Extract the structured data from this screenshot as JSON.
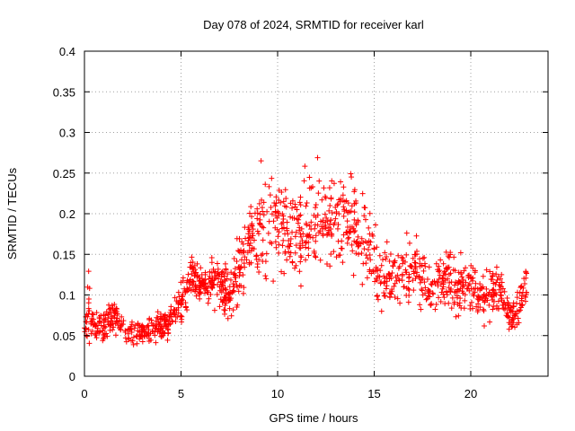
{
  "chart_data": {
    "type": "scatter",
    "title": "Day 078 of 2024, SRMTID for receiver karl",
    "xlabel": "GPS time / hours",
    "ylabel": "SRMTID / TECUs",
    "xlim": [
      0,
      24
    ],
    "ylim": [
      0,
      0.4
    ],
    "xticks": [
      0,
      5,
      10,
      15,
      20
    ],
    "yticks": [
      0,
      0.05,
      0.1,
      0.15,
      0.2,
      0.25,
      0.3,
      0.35,
      0.4
    ],
    "xtick_labels": [
      "0",
      "5",
      "10",
      "15",
      "20"
    ],
    "ytick_labels": [
      "0",
      "0.05",
      "0.1",
      "0.15",
      "0.2",
      "0.25",
      "0.3",
      "0.35",
      "0.4"
    ],
    "grid": true,
    "marker": "+",
    "color": "#ff0000",
    "series_note": "Estimated envelope of the scatter cloud (mean and spread of SRMTID vs hour); points are sampled from it.",
    "envelope": {
      "hours": [
        0,
        0.25,
        0.5,
        1,
        1.5,
        2,
        2.5,
        3,
        3.5,
        4,
        4.5,
        5,
        5.5,
        6,
        6.5,
        7,
        7.5,
        8,
        8.5,
        9,
        9.5,
        10,
        10.5,
        11,
        11.5,
        12,
        12.5,
        13,
        13.5,
        14,
        14.5,
        15,
        15.5,
        16,
        16.5,
        17,
        17.5,
        18,
        18.5,
        19,
        19.5,
        20,
        20.5,
        21,
        21.5,
        22,
        22.5,
        22.9
      ],
      "mean": [
        0.06,
        0.09,
        0.055,
        0.06,
        0.075,
        0.06,
        0.055,
        0.055,
        0.055,
        0.06,
        0.07,
        0.09,
        0.125,
        0.115,
        0.11,
        0.12,
        0.1,
        0.13,
        0.17,
        0.18,
        0.2,
        0.19,
        0.17,
        0.17,
        0.18,
        0.2,
        0.19,
        0.19,
        0.2,
        0.18,
        0.17,
        0.14,
        0.12,
        0.12,
        0.13,
        0.13,
        0.12,
        0.11,
        0.12,
        0.12,
        0.11,
        0.11,
        0.1,
        0.1,
        0.11,
        0.075,
        0.08,
        0.12
      ],
      "spread": [
        0.015,
        0.05,
        0.02,
        0.025,
        0.025,
        0.02,
        0.02,
        0.02,
        0.02,
        0.02,
        0.02,
        0.03,
        0.025,
        0.02,
        0.025,
        0.04,
        0.04,
        0.05,
        0.05,
        0.07,
        0.09,
        0.08,
        0.06,
        0.06,
        0.07,
        0.07,
        0.06,
        0.07,
        0.07,
        0.07,
        0.06,
        0.05,
        0.04,
        0.035,
        0.04,
        0.04,
        0.04,
        0.035,
        0.04,
        0.05,
        0.04,
        0.035,
        0.035,
        0.04,
        0.035,
        0.025,
        0.025,
        0.04
      ],
      "point_count": 1400
    }
  }
}
